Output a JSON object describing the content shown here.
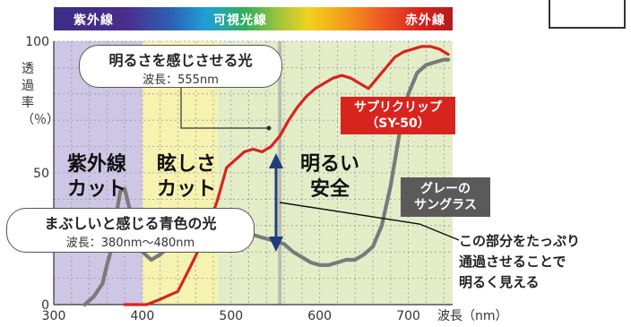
{
  "spectrum": {
    "uv": "紫外線",
    "visible": "可視光線",
    "ir": "赤外線"
  },
  "y_label": "透過率（％）",
  "bubble_light": {
    "title": "明るさを感じさせる光",
    "sub": "波長：555nm"
  },
  "bubble_blue": {
    "title": "まぶしいと感じる青色の光",
    "sub": "波長：380nm〜480nm"
  },
  "zones": {
    "uv_cut": [
      "紫外線",
      "カット"
    ],
    "glare_cut": [
      "眩しさ",
      "カット"
    ],
    "bright": [
      "明るい",
      "安全"
    ]
  },
  "product_label": [
    "サプリクリップ",
    "（SY-50）"
  ],
  "gray_label": [
    "グレーの",
    "サングラス"
  ],
  "callout": [
    "この部分をたっぷり",
    "通過させることで",
    "明るく見える"
  ],
  "chart_data": {
    "type": "line",
    "xlabel": "波長（nm）",
    "ylabel": "透過率（％）",
    "xlim": [
      300,
      750
    ],
    "ylim": [
      0,
      100
    ],
    "x_ticks": [
      300,
      400,
      500,
      600,
      700
    ],
    "y_ticks": [
      0,
      50,
      100
    ],
    "bands": [
      {
        "from": 300,
        "to": 400,
        "color": "#cdc6e4"
      },
      {
        "from": 400,
        "to": 485,
        "color": "#f6f2b0"
      },
      {
        "from": 485,
        "to": 750,
        "color": "#e3eec9"
      }
    ],
    "marker_x": 555,
    "series": [
      {
        "name": "サプリクリップ（SY-50）",
        "color": "#d8241e",
        "points": [
          [
            380,
            0
          ],
          [
            405,
            0
          ],
          [
            420,
            2
          ],
          [
            440,
            5
          ],
          [
            455,
            15
          ],
          [
            465,
            22
          ],
          [
            475,
            30
          ],
          [
            485,
            40
          ],
          [
            495,
            52
          ],
          [
            505,
            55
          ],
          [
            515,
            58
          ],
          [
            525,
            59
          ],
          [
            535,
            58
          ],
          [
            545,
            60
          ],
          [
            555,
            64
          ],
          [
            565,
            70
          ],
          [
            575,
            75
          ],
          [
            585,
            79
          ],
          [
            595,
            82
          ],
          [
            605,
            84
          ],
          [
            615,
            86
          ],
          [
            625,
            87
          ],
          [
            635,
            86
          ],
          [
            645,
            84
          ],
          [
            655,
            82
          ],
          [
            665,
            86
          ],
          [
            675,
            90
          ],
          [
            685,
            94
          ],
          [
            695,
            96
          ],
          [
            705,
            97
          ],
          [
            715,
            98
          ],
          [
            725,
            98
          ],
          [
            735,
            97
          ],
          [
            745,
            95
          ]
        ]
      },
      {
        "name": "グレーのサングラス",
        "color": "#7a7a7a",
        "points": [
          [
            335,
            0
          ],
          [
            345,
            3
          ],
          [
            355,
            8
          ],
          [
            360,
            15
          ],
          [
            365,
            21
          ],
          [
            370,
            33
          ],
          [
            375,
            43
          ],
          [
            380,
            44
          ],
          [
            385,
            37
          ],
          [
            390,
            30
          ],
          [
            395,
            24
          ],
          [
            400,
            20
          ],
          [
            410,
            17
          ],
          [
            420,
            19
          ],
          [
            430,
            22
          ],
          [
            440,
            25
          ],
          [
            450,
            27
          ],
          [
            460,
            29
          ],
          [
            470,
            30
          ],
          [
            480,
            30
          ],
          [
            490,
            30
          ],
          [
            500,
            29
          ],
          [
            510,
            28
          ],
          [
            520,
            27
          ],
          [
            530,
            26
          ],
          [
            540,
            25
          ],
          [
            550,
            24
          ],
          [
            560,
            23
          ],
          [
            570,
            20
          ],
          [
            580,
            18
          ],
          [
            590,
            16
          ],
          [
            600,
            15
          ],
          [
            610,
            15
          ],
          [
            620,
            16
          ],
          [
            630,
            17
          ],
          [
            640,
            17
          ],
          [
            650,
            19
          ],
          [
            660,
            22
          ],
          [
            670,
            30
          ],
          [
            680,
            45
          ],
          [
            690,
            65
          ],
          [
            700,
            80
          ],
          [
            710,
            88
          ],
          [
            720,
            91
          ],
          [
            730,
            92
          ],
          [
            740,
            93
          ],
          [
            745,
            93
          ]
        ]
      }
    ]
  }
}
